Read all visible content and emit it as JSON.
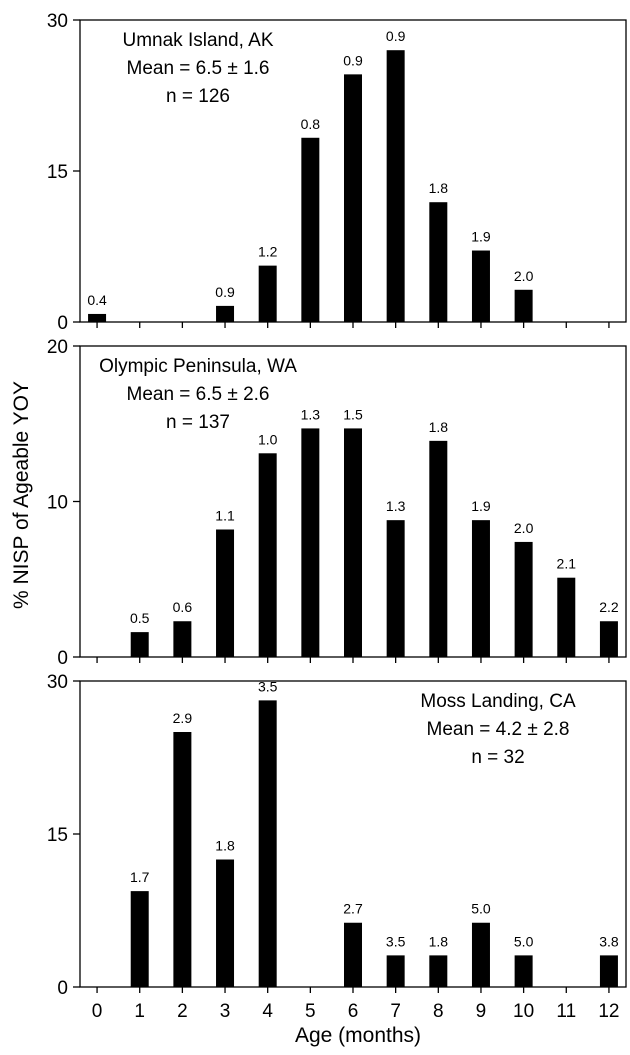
{
  "figure": {
    "ylabel": "% NISP of Ageable YOY",
    "xlabel": "Age (months)"
  },
  "chart_data": [
    {
      "type": "bar",
      "x": [
        0,
        1,
        2,
        3,
        4,
        5,
        6,
        7,
        8,
        9,
        10,
        11,
        12
      ],
      "xlim": [
        -0.4,
        12.4
      ],
      "ylim": [
        0,
        30
      ],
      "yticks": [
        "0",
        "15",
        "30"
      ],
      "annotation": [
        "Umnak Island, AK",
        "Mean = 6.5 ± 1.6",
        "n = 126"
      ],
      "annotation_position": "top-left",
      "bars": [
        {
          "x": 0,
          "value": 0.8,
          "label": "0.4"
        },
        {
          "x": 3,
          "value": 1.6,
          "label": "0.9"
        },
        {
          "x": 4,
          "value": 5.6,
          "label": "1.2"
        },
        {
          "x": 5,
          "value": 18.3,
          "label": "0.8"
        },
        {
          "x": 6,
          "value": 24.6,
          "label": "0.9"
        },
        {
          "x": 7,
          "value": 27.0,
          "label": "0.9"
        },
        {
          "x": 8,
          "value": 11.9,
          "label": "1.8"
        },
        {
          "x": 9,
          "value": 7.1,
          "label": "1.9"
        },
        {
          "x": 10,
          "value": 3.2,
          "label": "2.0"
        }
      ]
    },
    {
      "type": "bar",
      "x": [
        0,
        1,
        2,
        3,
        4,
        5,
        6,
        7,
        8,
        9,
        10,
        11,
        12
      ],
      "xlim": [
        -0.4,
        12.4
      ],
      "ylim": [
        0,
        20
      ],
      "yticks": [
        "0",
        "10",
        "20"
      ],
      "annotation": [
        "Olympic Peninsula, WA",
        "Mean = 6.5 ± 2.6",
        "n = 137"
      ],
      "annotation_position": "top-left",
      "bars": [
        {
          "x": 1,
          "value": 1.6,
          "label": "0.5"
        },
        {
          "x": 2,
          "value": 2.3,
          "label": "0.6"
        },
        {
          "x": 3,
          "value": 8.2,
          "label": "1.1"
        },
        {
          "x": 4,
          "value": 13.1,
          "label": "1.0"
        },
        {
          "x": 5,
          "value": 14.7,
          "label": "1.3"
        },
        {
          "x": 6,
          "value": 14.7,
          "label": "1.5"
        },
        {
          "x": 7,
          "value": 8.8,
          "label": "1.3"
        },
        {
          "x": 8,
          "value": 13.9,
          "label": "1.8"
        },
        {
          "x": 9,
          "value": 8.8,
          "label": "1.9"
        },
        {
          "x": 10,
          "value": 7.4,
          "label": "2.0"
        },
        {
          "x": 11,
          "value": 5.1,
          "label": "2.1"
        },
        {
          "x": 12,
          "value": 2.3,
          "label": "2.2"
        }
      ]
    },
    {
      "type": "bar",
      "x": [
        0,
        1,
        2,
        3,
        4,
        5,
        6,
        7,
        8,
        9,
        10,
        11,
        12
      ],
      "xlim": [
        -0.4,
        12.4
      ],
      "ylim": [
        0,
        30
      ],
      "yticks": [
        "0",
        "15",
        "30"
      ],
      "xticks": [
        "0",
        "1",
        "2",
        "3",
        "4",
        "5",
        "6",
        "7",
        "8",
        "9",
        "10",
        "11",
        "12"
      ],
      "annotation": [
        "Moss Landing, CA",
        "Mean = 4.2 ± 2.8",
        "n = 32"
      ],
      "annotation_position": "top-right",
      "bars": [
        {
          "x": 1,
          "value": 9.4,
          "label": "1.7"
        },
        {
          "x": 2,
          "value": 25.0,
          "label": "2.9"
        },
        {
          "x": 3,
          "value": 12.5,
          "label": "1.8"
        },
        {
          "x": 4,
          "value": 28.1,
          "label": "3.5"
        },
        {
          "x": 6,
          "value": 6.3,
          "label": "2.7"
        },
        {
          "x": 7,
          "value": 3.1,
          "label": "3.5"
        },
        {
          "x": 8,
          "value": 3.1,
          "label": "1.8"
        },
        {
          "x": 9,
          "value": 6.3,
          "label": "5.0"
        },
        {
          "x": 10,
          "value": 3.1,
          "label": "5.0"
        },
        {
          "x": 12,
          "value": 3.1,
          "label": "3.8"
        }
      ]
    }
  ]
}
